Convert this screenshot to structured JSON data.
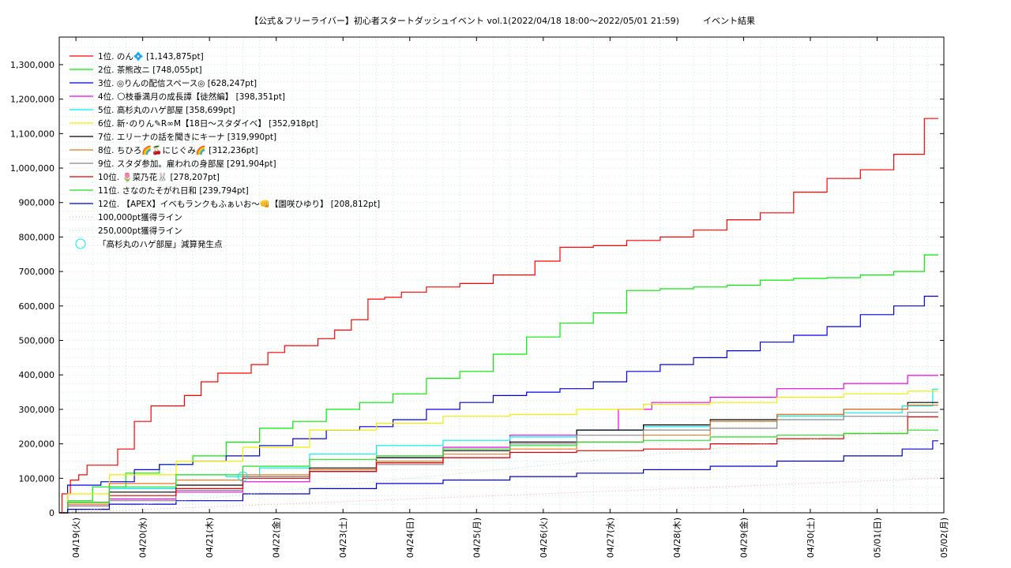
{
  "chart_data": {
    "type": "line",
    "title": "【公式＆フリーライバー】初心者スタートダッシュイベント vol.1(2022/04/18 18:00～2022/05/01 21:59)",
    "subtitle": "イベント結果",
    "xlabel": "",
    "ylabel": "",
    "x_ticks": [
      "04/19(火)",
      "04/20(水)",
      "04/21(木)",
      "04/22(金)",
      "04/23(土)",
      "04/24(日)",
      "04/25(月)",
      "04/26(火)",
      "04/27(水)",
      "04/28(木)",
      "04/29(金)",
      "04/30(土)",
      "05/01(日)",
      "05/02(月)"
    ],
    "xlim": [
      "2022-04-18 18:00",
      "2022-05-02 00:00"
    ],
    "ylim": [
      0,
      1380000
    ],
    "y_ticks": [
      "0",
      "100,000",
      "200,000",
      "300,000",
      "400,000",
      "500,000",
      "600,000",
      "700,000",
      "800,000",
      "900,000",
      "1,000,000",
      "1,100,000",
      "1,200,000",
      "1,300,000"
    ],
    "grid": true,
    "legend_position": "top-left",
    "series": [
      {
        "name": "1位. のん💠 [1,143,875pt]",
        "color": "#ff0000",
        "x": [
          "04/18 18:00",
          "04/18 20:00",
          "04/19 00:00",
          "04/19 02:00",
          "04/19 06:00",
          "04/19 12:00",
          "04/19 18:00",
          "04/20 00:00",
          "04/20 06:00",
          "04/20 12:00",
          "04/20 18:00",
          "04/21 00:00",
          "04/21 06:00",
          "04/21 12:00",
          "04/21 18:00",
          "04/22 00:00",
          "04/22 06:00",
          "04/22 12:00",
          "04/22 18:00",
          "04/23 00:00",
          "04/23 06:00",
          "04/23 12:00",
          "04/23 18:00",
          "04/24 00:00",
          "04/24 12:00",
          "04/25 00:00",
          "04/25 12:00",
          "04/25 18:00",
          "04/26 00:00",
          "04/26 12:00",
          "04/27 00:00",
          "04/27 12:00",
          "04/28 00:00",
          "04/28 12:00",
          "04/29 00:00",
          "04/29 12:00",
          "04/30 00:00",
          "04/30 12:00",
          "05/01 00:00",
          "05/01 12:00",
          "05/01 21:59"
        ],
        "y": [
          0,
          55000,
          95000,
          110000,
          138000,
          138000,
          185000,
          265000,
          310000,
          310000,
          340000,
          380000,
          405000,
          405000,
          430000,
          465000,
          485000,
          485000,
          505000,
          530000,
          560000,
          620000,
          625000,
          640000,
          655000,
          665000,
          690000,
          690000,
          730000,
          770000,
          775000,
          790000,
          800000,
          820000,
          850000,
          870000,
          930000,
          970000,
          995000,
          1040000,
          1143875
        ]
      },
      {
        "name": "2位. 茶熊改ニ [748,055pt]",
        "color": "#00ee00",
        "x": [
          "04/18 18:00",
          "04/19 00:00",
          "04/19 12:00",
          "04/20 00:00",
          "04/20 12:00",
          "04/21 00:00",
          "04/21 12:00",
          "04/22 00:00",
          "04/22 12:00",
          "04/23 00:00",
          "04/23 12:00",
          "04/24 00:00",
          "04/24 12:00",
          "04/25 00:00",
          "04/25 12:00",
          "04/26 00:00",
          "04/26 12:00",
          "04/27 00:00",
          "04/27 12:00",
          "04/28 00:00",
          "04/28 12:00",
          "04/29 00:00",
          "04/29 12:00",
          "04/30 00:00",
          "04/30 12:00",
          "05/01 00:00",
          "05/01 12:00",
          "05/01 21:59"
        ],
        "y": [
          0,
          35000,
          75000,
          115000,
          140000,
          165000,
          205000,
          245000,
          265000,
          300000,
          320000,
          345000,
          390000,
          410000,
          460000,
          510000,
          550000,
          580000,
          645000,
          650000,
          655000,
          660000,
          675000,
          680000,
          682000,
          690000,
          700000,
          748055
        ]
      },
      {
        "name": "3位. ◎りんの配信スペース◎ [628,247pt]",
        "color": "#0000dd",
        "x": [
          "04/18 18:00",
          "04/19 00:00",
          "04/19 18:00",
          "04/20 00:00",
          "04/20 12:00",
          "04/21 00:00",
          "04/21 12:00",
          "04/22 00:00",
          "04/22 12:00",
          "04/23 00:00",
          "04/23 12:00",
          "04/24 00:00",
          "04/24 12:00",
          "04/25 00:00",
          "04/25 12:00",
          "04/26 00:00",
          "04/26 12:00",
          "04/27 00:00",
          "04/27 12:00",
          "04/28 00:00",
          "04/28 12:00",
          "04/29 00:00",
          "04/29 12:00",
          "04/30 00:00",
          "04/30 12:00",
          "05/01 00:00",
          "05/01 12:00",
          "05/01 21:59"
        ],
        "y": [
          0,
          80000,
          90000,
          125000,
          140000,
          150000,
          165000,
          195000,
          215000,
          240000,
          250000,
          270000,
          300000,
          320000,
          340000,
          350000,
          360000,
          380000,
          410000,
          430000,
          450000,
          470000,
          495000,
          515000,
          540000,
          575000,
          600000,
          628247
        ]
      },
      {
        "name": "4位. 🌕枝垂満月の成長譚【徒然編】 [398,351pt]",
        "color": "#ee00ee",
        "x": [
          "04/18 18:00",
          "04/19 00:00",
          "04/20 00:00",
          "04/21 00:00",
          "04/22 00:00",
          "04/23 00:00",
          "04/24 00:00",
          "04/25 00:00",
          "04/26 00:00",
          "04/27 00:00",
          "04/27 06:00",
          "04/28 00:00",
          "04/29 00:00",
          "04/30 00:00",
          "05/01 00:00",
          "05/01 21:59"
        ],
        "y": [
          0,
          20000,
          40000,
          60000,
          90000,
          120000,
          160000,
          190000,
          225000,
          240000,
          300000,
          320000,
          335000,
          360000,
          375000,
          398351
        ]
      },
      {
        "name": "5位. 高杉丸のハゲ部屋 [358,699pt]",
        "color": "#00eeee",
        "x": [
          "04/18 18:00",
          "04/19 00:00",
          "04/20 00:00",
          "04/21 00:00",
          "04/21 12:00",
          "04/22 00:00",
          "04/23 00:00",
          "04/24 00:00",
          "04/25 00:00",
          "04/26 00:00",
          "04/27 00:00",
          "04/28 00:00",
          "04/29 00:00",
          "04/30 00:00",
          "05/01 00:00",
          "05/01 18:00",
          "05/01 21:59"
        ],
        "y": [
          0,
          30000,
          70000,
          110000,
          105000,
          130000,
          170000,
          195000,
          210000,
          220000,
          240000,
          250000,
          265000,
          280000,
          290000,
          310000,
          358699
        ]
      },
      {
        "name": "6位. 新･のりん✎R∞M【18日〜スタダイベ】 [352,918pt]",
        "color": "#eeee00",
        "x": [
          "04/18 18:00",
          "04/19 00:00",
          "04/20 00:00",
          "04/21 00:00",
          "04/22 00:00",
          "04/23 00:00",
          "04/24 00:00",
          "04/25 00:00",
          "04/26 00:00",
          "04/27 00:00",
          "04/28 00:00",
          "04/29 00:00",
          "04/30 00:00",
          "05/01 00:00",
          "05/01 21:59"
        ],
        "y": [
          0,
          55000,
          110000,
          150000,
          190000,
          240000,
          260000,
          280000,
          285000,
          300000,
          315000,
          320000,
          335000,
          345000,
          352918
        ]
      },
      {
        "name": "7位. エリーナの話を聞きにキーナ [319,990pt]",
        "color": "#000000",
        "x": [
          "04/18 18:00",
          "04/19 00:00",
          "04/20 00:00",
          "04/21 00:00",
          "04/22 00:00",
          "04/23 00:00",
          "04/24 00:00",
          "04/25 00:00",
          "04/26 00:00",
          "04/27 00:00",
          "04/28 00:00",
          "04/29 00:00",
          "04/30 00:00",
          "05/01 00:00",
          "05/01 21:59"
        ],
        "y": [
          0,
          30000,
          60000,
          80000,
          105000,
          130000,
          160000,
          180000,
          205000,
          240000,
          255000,
          270000,
          285000,
          300000,
          319990
        ]
      },
      {
        "name": "8位. ちひろ🌈🍒にじぐみ🌈 [312,236pt]",
        "color": "#ee7722",
        "x": [
          "04/18 18:00",
          "04/19 00:00",
          "04/20 00:00",
          "04/21 00:00",
          "04/22 00:00",
          "04/23 00:00",
          "04/24 00:00",
          "04/25 00:00",
          "04/26 00:00",
          "04/27 00:00",
          "04/28 00:00",
          "04/29 00:00",
          "04/30 00:00",
          "05/01 00:00",
          "05/01 21:59"
        ],
        "y": [
          0,
          25000,
          85000,
          95000,
          110000,
          125000,
          150000,
          170000,
          185000,
          205000,
          225000,
          265000,
          285000,
          300000,
          312236
        ]
      },
      {
        "name": "9位. スタダ参加。雇われの身部屋 [291,904pt]",
        "color": "#888888",
        "x": [
          "04/18 18:00",
          "04/19 00:00",
          "04/20 00:00",
          "04/21 00:00",
          "04/22 00:00",
          "04/23 00:00",
          "04/24 00:00",
          "04/25 00:00",
          "04/26 00:00",
          "04/27 00:00",
          "04/28 00:00",
          "04/29 00:00",
          "04/30 00:00",
          "05/01 00:00",
          "05/01 21:59"
        ],
        "y": [
          0,
          20000,
          35000,
          65000,
          105000,
          120000,
          140000,
          160000,
          200000,
          225000,
          240000,
          245000,
          270000,
          280000,
          291904
        ]
      },
      {
        "name": "10位. 🌷菜乃花🐰 [278,207pt]",
        "color": "#dd0000",
        "x": [
          "04/18 18:00",
          "04/19 00:00",
          "04/20 00:00",
          "04/21 00:00",
          "04/22 00:00",
          "04/23 00:00",
          "04/24 00:00",
          "04/25 00:00",
          "04/26 00:00",
          "04/27 00:00",
          "04/28 00:00",
          "04/29 00:00",
          "04/30 00:00",
          "05/01 00:00",
          "05/01 21:59"
        ],
        "y": [
          0,
          30000,
          50000,
          70000,
          100000,
          120000,
          145000,
          160000,
          175000,
          180000,
          185000,
          200000,
          215000,
          230000,
          278207
        ]
      },
      {
        "name": "11位. さなのたそがれ日和 [239,794pt]",
        "color": "#22dd22",
        "x": [
          "04/18 18:00",
          "04/19 00:00",
          "04/20 00:00",
          "04/21 00:00",
          "04/22 00:00",
          "04/23 00:00",
          "04/24 00:00",
          "04/25 00:00",
          "04/26 00:00",
          "04/27 00:00",
          "04/28 00:00",
          "04/29 00:00",
          "04/30 00:00",
          "05/01 00:00",
          "05/01 21:59"
        ],
        "y": [
          0,
          30000,
          75000,
          110000,
          135000,
          155000,
          165000,
          185000,
          195000,
          205000,
          210000,
          220000,
          225000,
          230000,
          239794
        ]
      },
      {
        "name": "12位. 【APEX】イベもランクもふぁいお〜👊【園咲ひゆり】 [208,812pt]",
        "color": "#0000cc",
        "x": [
          "04/18 18:00",
          "04/19 00:00",
          "04/20 00:00",
          "04/21 00:00",
          "04/22 00:00",
          "04/23 00:00",
          "04/24 00:00",
          "04/25 00:00",
          "04/26 00:00",
          "04/27 00:00",
          "04/28 00:00",
          "04/29 00:00",
          "04/30 00:00",
          "05/01 00:00",
          "05/01 18:00",
          "05/01 21:59"
        ],
        "y": [
          0,
          10000,
          25000,
          35000,
          55000,
          70000,
          85000,
          95000,
          105000,
          115000,
          125000,
          135000,
          150000,
          165000,
          185000,
          208812
        ]
      },
      {
        "name": "100,000pt獲得ライン",
        "color": "#ff9999",
        "style": "dotted",
        "x": [
          "04/18 18:00",
          "05/01 21:59"
        ],
        "y": [
          0,
          100000
        ]
      },
      {
        "name": "250,000pt獲得ライン",
        "color": "#aaddaa",
        "style": "dotted",
        "x": [
          "04/18 18:00",
          "05/01 21:59"
        ],
        "y": [
          0,
          250000
        ]
      }
    ],
    "markers": [
      {
        "name": "「高杉丸のハゲ部屋」減算発生点",
        "color": "#00eeee",
        "x": "04/21 12:00",
        "y": 105000
      }
    ]
  }
}
